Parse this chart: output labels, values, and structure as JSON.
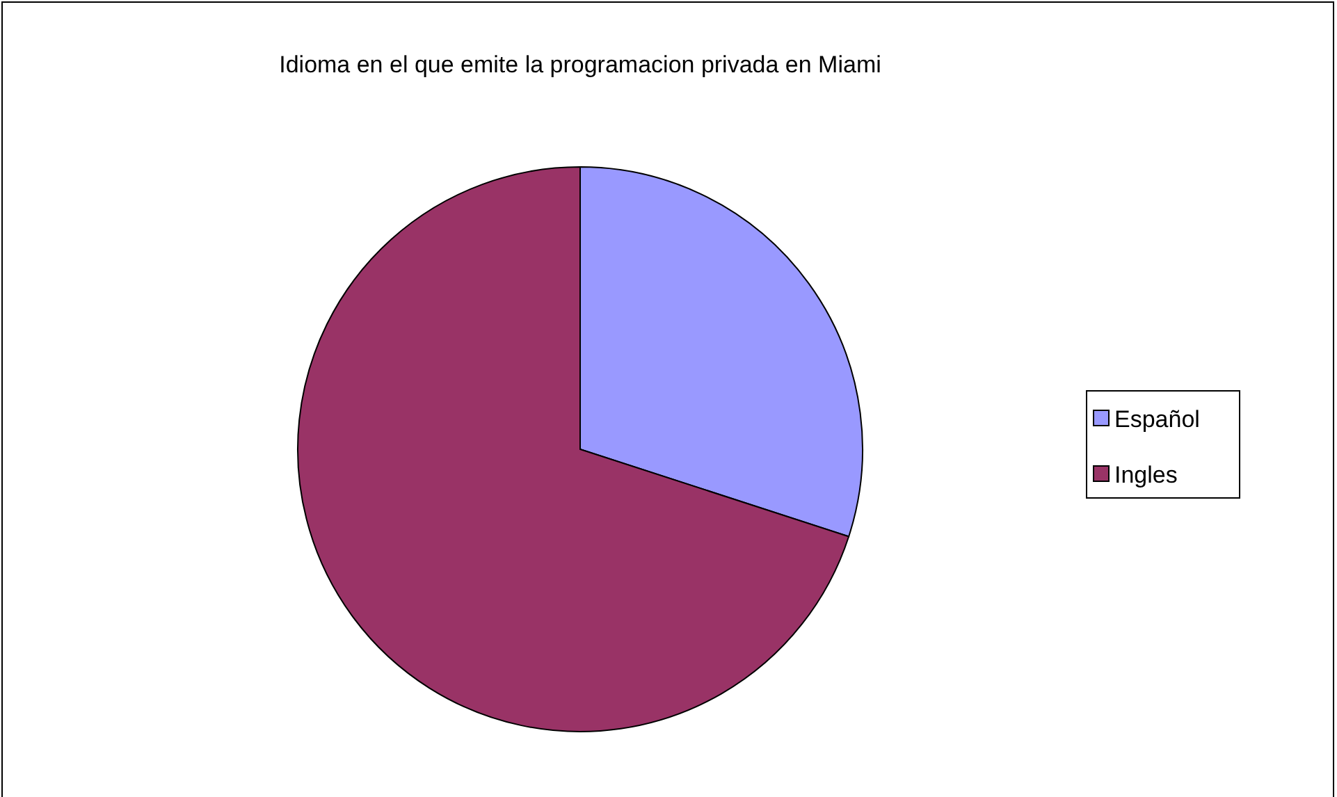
{
  "chart_data": {
    "type": "pie",
    "title": "Idioma en el que emite la programacion privada en Miami",
    "categories": [
      "Español",
      "Ingles"
    ],
    "values": [
      30,
      70
    ],
    "colors": [
      "#9999ff",
      "#993366"
    ],
    "legend": "right"
  }
}
